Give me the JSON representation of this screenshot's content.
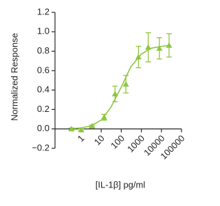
{
  "chart_data": {
    "type": "scatter",
    "x_label": "[IL-1β] pg/ml",
    "y_label": "Normalized Response",
    "x": [
      0.33,
      1,
      3.5,
      14,
      49,
      170,
      720,
      2200,
      7900,
      24000
    ],
    "values": [
      0.0,
      -0.01,
      0.03,
      0.12,
      0.36,
      0.46,
      0.74,
      0.84,
      0.83,
      0.86
    ],
    "errors": [
      0.01,
      0.01,
      0.01,
      0.03,
      0.08,
      0.09,
      0.11,
      0.15,
      0.11,
      0.12
    ],
    "fit": {
      "x": [
        0.3,
        1,
        3,
        10,
        30,
        100,
        300,
        1000,
        3000,
        10000,
        24000
      ],
      "values": [
        0.003,
        0.01,
        0.03,
        0.09,
        0.22,
        0.43,
        0.64,
        0.77,
        0.83,
        0.85,
        0.86
      ]
    },
    "color": "#8dc63f",
    "log_x": true,
    "xlim": [
      0.05,
      100000
    ],
    "xticks": [
      1,
      10,
      100,
      1000,
      10000,
      100000
    ],
    "ylim": [
      -0.2,
      1.2
    ],
    "yticks": [
      {
        "value": -0.2,
        "label": "−0.2"
      },
      {
        "value": 0,
        "label": "0.0"
      },
      0.2,
      0.4,
      0.6,
      0.8,
      {
        "value": 1,
        "label": "1.0"
      },
      1.2
    ]
  }
}
